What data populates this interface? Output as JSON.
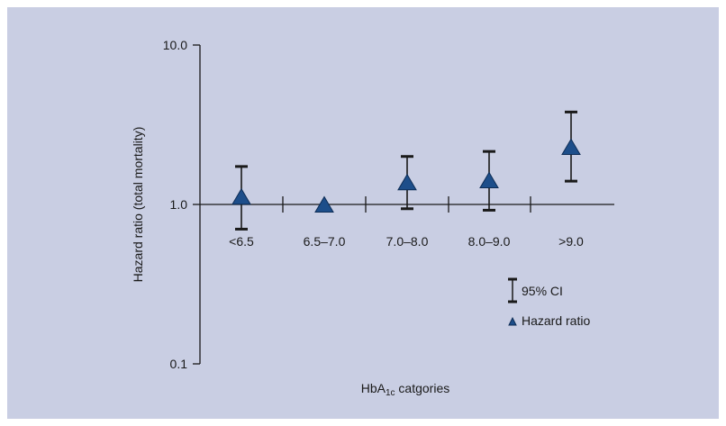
{
  "chart_data": {
    "type": "scatter",
    "xlabel_main": "HbA",
    "xlabel_sub": "1c",
    "xlabel_tail": " catgories",
    "ylabel": "Hazard ratio (total mortality)",
    "yscale": "log",
    "ylim": [
      0.1,
      10.0
    ],
    "yticks": [
      {
        "value": 10.0,
        "label": "10.0"
      },
      {
        "value": 1.0,
        "label": "1.0"
      },
      {
        "value": 0.1,
        "label": "0.1"
      }
    ],
    "categories": [
      "<6.5",
      "6.5–7.0",
      "7.0–8.0",
      "8.0–9.0",
      ">9.0"
    ],
    "series": [
      {
        "values": [
          1.12,
          1.0,
          1.38,
          1.42,
          2.3
        ],
        "ci_low": [
          0.7,
          null,
          0.94,
          0.92,
          1.4
        ],
        "ci_high": [
          1.73,
          null,
          2.0,
          2.15,
          3.8
        ]
      }
    ],
    "grid": false,
    "legend_position": "bottom-right",
    "legend": {
      "ci_label": "95% CI",
      "hr_label": "Hazard ratio"
    },
    "colors": {
      "background": "#c9cee3",
      "marker": "#1d4e8a",
      "marker_stroke": "#0d2c55",
      "axis": "#1a1a1a"
    }
  }
}
